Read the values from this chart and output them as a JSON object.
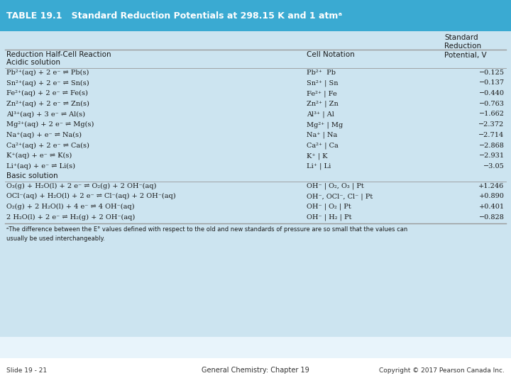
{
  "title": "TABLE 19.1   Standard Reduction Potentials at 298.15 K and 1 atmᵃ",
  "title_bg": "#3aaad2",
  "table_bg": "#cce4f0",
  "white_bg": "#f0f8ff",
  "col_headers": [
    "Reduction Half-Cell Reaction",
    "Cell Notation",
    "Standard\nReduction\nPotential, V"
  ],
  "section_acidic": "Acidic solution",
  "section_basic": "Basic solution",
  "acidic_reactions": [
    "Pb²⁺(aq) + 2 e⁻ ⇌ Pb(s)",
    "Sn²⁺(aq) + 2 e⁻ ⇌ Sn(s)",
    "Fe²⁺(aq) + 2 e⁻ ⇌ Fe(s)",
    "Zn²⁺(aq) + 2 e⁻ ⇌ Zn(s)",
    "Al³⁺(aq) + 3 e⁻ ⇌ Al(s)",
    "Mg²⁺(aq) + 2 e⁻ ⇌ Mg(s)",
    "Na⁺(aq) + e⁻ ⇌ Na(s)",
    "Ca²⁺(aq) + 2 e⁻ ⇌ Ca(s)",
    "K⁺(aq) + e⁻ ⇌ K(s)",
    "Li⁺(aq) + e⁻ ⇌ Li(s)"
  ],
  "acidic_notation": [
    "Pb²⁺  Pb",
    "Sn²⁺ | Sn",
    "Fe²⁺ | Fe",
    "Zn²⁺ | Zn",
    "Al³⁺ | Al",
    "Mg²⁺ | Mg",
    "Na⁺ | Na",
    "Ca²⁺ | Ca",
    "K⁺ | K",
    "Li⁺ | Li"
  ],
  "acidic_potentials": [
    "−0.125",
    "−0.137",
    "−0.440",
    "−0.763",
    "−1.662",
    "−2.372",
    "−2.714",
    "−2.868",
    "−2.931",
    "−3.05"
  ],
  "basic_reactions": [
    "O₃(g) + H₂O(l) + 2 e⁻ ⇌ O₂(g) + 2 OH⁻(aq)",
    "OCl⁻(aq) + H₂O(l) + 2 e⁻ ⇌ Cl⁻(aq) + 2 OH⁻(aq)",
    "O₂(g) + 2 H₂O(l) + 4 e⁻ ⇌ 4 OH⁻(aq)",
    "2 H₂O(l) + 2 e⁻ ⇌ H₂(g) + 2 OH⁻(aq)"
  ],
  "basic_notation": [
    "OH⁻ | O₂, O₃ | Pt",
    "OH⁻, OCl⁻, Cl⁻ | Pt",
    "OH⁻ | O₂ | Pt",
    "OH⁻ | H₂ | Pt"
  ],
  "basic_potentials": [
    "+1.246",
    "+0.890",
    "+0.401",
    "−0.828"
  ],
  "footnote": "ᵃThe difference between the E° values defined with respect to the old and new standards of pressure are so small that the values can\nusually be used interchangeably.",
  "footer_left": "Slide 19 - 21",
  "footer_center": "General Chemistry: Chapter 19",
  "footer_right": "Copyright © 2017 Pearson Canada Inc.",
  "text_color": "#1a1a1a",
  "header_text_color": "#FFFFFF",
  "line_color": "#999999",
  "font_size_data": 7.0,
  "font_size_header": 7.5,
  "font_size_title": 9.0,
  "font_size_section": 7.5,
  "font_size_footnote": 6.0,
  "font_size_footer": 6.5
}
